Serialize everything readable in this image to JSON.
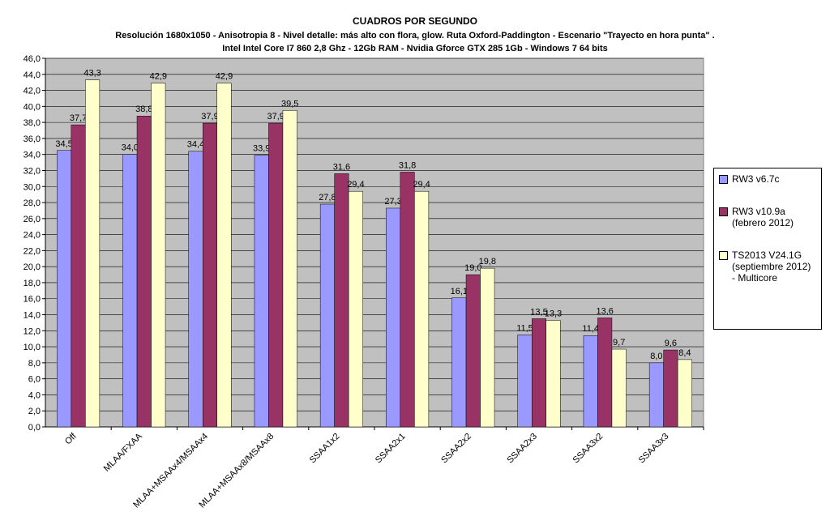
{
  "chart_data": {
    "type": "bar",
    "title": "CUADROS POR SEGUNDO",
    "subtitle": [
      "Resolución 1680x1050 - Anisotropia 8 - Nivel detalle: más alto con flora, glow. Ruta Oxford-Paddington - Escenario \"Trayecto en hora punta\" .",
      "Intel Intel Core I7 860 2,8 Ghz - 12Gb RAM - Nvidia Gforce GTX 285 1Gb - Windows 7 64 bits"
    ],
    "categories": [
      "Off",
      "MLAA/FXAA",
      "MLAA+MSAAx4/MSAAx4",
      "MLAA+MSAAx8/MSAAx8",
      "SSAA1x2",
      "SSAA2x1",
      "SSAA2x2",
      "SSAA2x3",
      "SSAA3x2",
      "SSAA3x3"
    ],
    "series": [
      {
        "name": "RW3 v6.7c",
        "color": "#9999ff",
        "values": [
          34.5,
          34.0,
          34.4,
          33.9,
          27.8,
          27.3,
          16.1,
          11.5,
          11.4,
          8.0
        ],
        "value_labels": [
          "34,5",
          "34,0",
          "34,4",
          "33,9",
          "27,8",
          "27,3",
          "16,1",
          "11,5",
          "11,4",
          "8,0"
        ]
      },
      {
        "name": "RW3 v10.9a (febrero 2012)",
        "color": "#993366",
        "values": [
          37.7,
          38.8,
          37.9,
          37.9,
          31.6,
          31.8,
          19.0,
          13.5,
          13.6,
          9.6
        ],
        "value_labels": [
          "37,7",
          "38,8",
          "37,9",
          "37,9",
          "31,6",
          "31,8",
          "19,0",
          "13,5",
          "13,6",
          "9,6"
        ]
      },
      {
        "name": "TS2013 V24.1G (septiembre 2012) - Multicore",
        "color": "#ffffcc",
        "values": [
          43.3,
          42.9,
          42.9,
          39.5,
          29.4,
          29.4,
          19.8,
          13.3,
          9.7,
          8.4
        ],
        "value_labels": [
          "43,3",
          "42,9",
          "42,9",
          "39,5",
          "29,4",
          "29,4",
          "19,8",
          "13,3",
          "9,7",
          "8,4"
        ]
      }
    ],
    "ylim": [
      0,
      46
    ],
    "yticks": [
      {
        "value": 0,
        "label": "0,0"
      },
      {
        "value": 2,
        "label": "2,0"
      },
      {
        "value": 4,
        "label": "4,0"
      },
      {
        "value": 6,
        "label": "6,0"
      },
      {
        "value": 8,
        "label": "8,0"
      },
      {
        "value": 10,
        "label": "10,0"
      },
      {
        "value": 12,
        "label": "12,0"
      },
      {
        "value": 14,
        "label": "14,0"
      },
      {
        "value": 16,
        "label": "16,0"
      },
      {
        "value": 18,
        "label": "18,0"
      },
      {
        "value": 20,
        "label": "20,0"
      },
      {
        "value": 22,
        "label": "22,0"
      },
      {
        "value": 24,
        "label": "24,0"
      },
      {
        "value": 26,
        "label": "26,0"
      },
      {
        "value": 28,
        "label": "28,0"
      },
      {
        "value": 30,
        "label": "30,0"
      },
      {
        "value": 32,
        "label": "32,0"
      },
      {
        "value": 34,
        "label": "34,0"
      },
      {
        "value": 36,
        "label": "36,0"
      },
      {
        "value": 38,
        "label": "38,0"
      },
      {
        "value": 40,
        "label": "40,0"
      },
      {
        "value": 42,
        "label": "42,0"
      },
      {
        "value": 44,
        "label": "44,0"
      },
      {
        "value": 46,
        "label": "46,0"
      }
    ],
    "grid": true,
    "plot_background": "#c0c0c0",
    "legend": "right"
  }
}
